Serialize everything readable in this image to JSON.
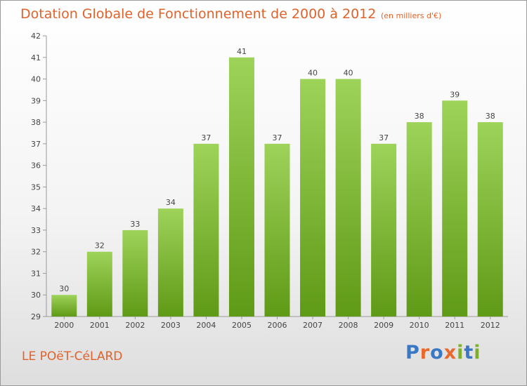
{
  "header": {
    "title": "Dotation Globale de Fonctionnement de 2000 à 2012",
    "subtitle": "(en milliers d'€)"
  },
  "footer": {
    "commune": "LE POëT-CéLARD",
    "logo_text": "Proxiti",
    "logo_letter_colors": [
      "#3b78c3",
      "#e8692b",
      "#3b78c3",
      "#e8692b",
      "#7dae2e",
      "#3b78c3",
      "#7dae2e"
    ]
  },
  "colors": {
    "accent": "#e0622a",
    "bar_top": "#9ed35a",
    "bar_bottom": "#5f9a16"
  },
  "chart_data": {
    "type": "bar",
    "categories": [
      "2000",
      "2001",
      "2002",
      "2003",
      "2004",
      "2005",
      "2006",
      "2007",
      "2008",
      "2009",
      "2010",
      "2011",
      "2012"
    ],
    "values": [
      30,
      32,
      33,
      34,
      37,
      41,
      37,
      40,
      40,
      37,
      38,
      39,
      38
    ],
    "data_labels": [
      "30",
      "32",
      "33",
      "34",
      "37",
      "41",
      "37",
      "40",
      "40",
      "37",
      "38",
      "39",
      "38"
    ],
    "yticks": [
      29,
      30,
      31,
      32,
      33,
      34,
      35,
      36,
      37,
      38,
      39,
      40,
      41,
      42
    ],
    "ylim": [
      29,
      42
    ],
    "title": "Dotation Globale de Fonctionnement de 2000 à 2012",
    "xlabel": "",
    "ylabel": "",
    "grid": false
  }
}
